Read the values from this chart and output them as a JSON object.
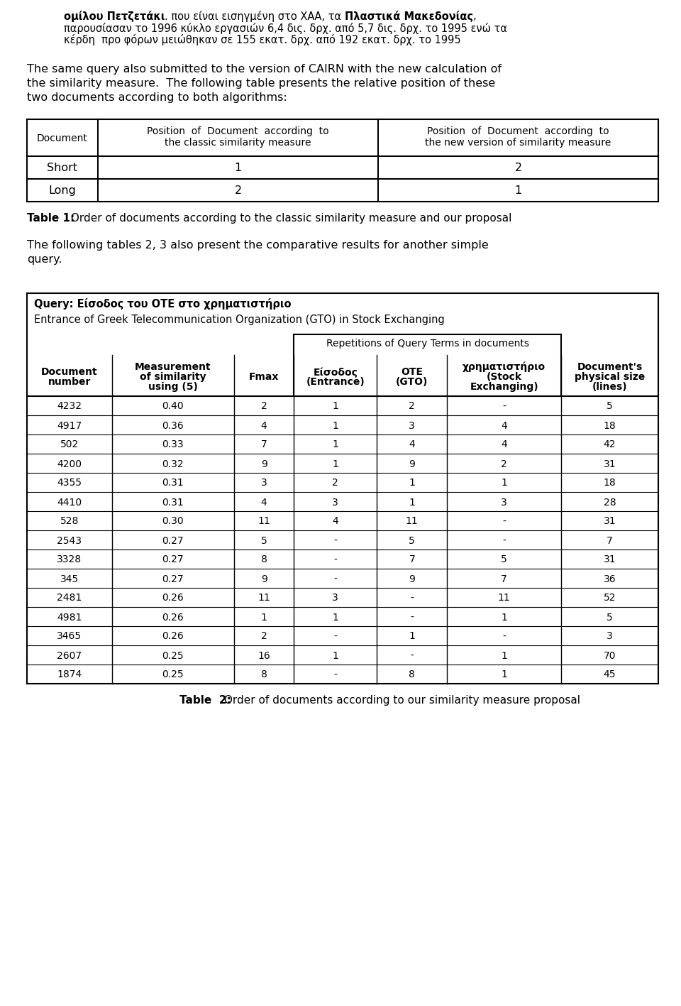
{
  "line1_bold1": "ομίλου Πετζετάκι",
  "line1_mid": ". που είναι εισηγμένη στο ΧΑΑ, τα ",
  "line1_bold2": "Πλαστικά Μακεδονίας",
  "line1_end": ",",
  "line2": "παρουσίασαν το 1996 κύκλο εργασιών 6,4 δις. δρχ. από 5,7 δις. δρχ. το 1995 ενώ τα",
  "line3": "κέρδη  προ φόρων μειώθηκαν σε 155 εκατ. δρχ. από 192 εκατ. δρχ. το 1995",
  "para1_lines": [
    "The same query also submitted to the version of CAIRN with the new calculation of",
    "the similarity measure.  The following table presents the relative position of these",
    "two documents according to both algorithms:"
  ],
  "t1_hdr0": "Document",
  "t1_hdr1a": "Position  of  Document  according  to",
  "t1_hdr1b": "the classic similarity measure",
  "t1_hdr2a": "Position  of  Document  according  to",
  "t1_hdr2b": "the new version of similarity measure",
  "t1_rows": [
    [
      "Short",
      "1",
      "2"
    ],
    [
      "Long",
      "2",
      "1"
    ]
  ],
  "t1_cap_bold": "Table 1:",
  "t1_cap_rest": " Order of documents according to the classic similarity measure and our proposal",
  "para2_lines": [
    "The following tables 2, 3 also present the comparative results for another simple",
    "query."
  ],
  "t2_query_bold": "Query: Είσοδος του ΟΤΕ στο χρηματιστήριο",
  "t2_query_normal": "Entrance of Greek Telecommunication Organization (GTO) in Stock Exchanging",
  "t2_subhdr": "Repetitions of Query Terms in documents",
  "t2_col_hdrs": [
    [
      "Document",
      "number"
    ],
    [
      "Measurement",
      "of similarity",
      "using (5)"
    ],
    [
      "Fmax"
    ],
    [
      "Είσοδος",
      "(Entrance)"
    ],
    [
      "OTE",
      "(GTO)"
    ],
    [
      "χρηματιστήριο",
      "(Stock",
      "Exchanging)"
    ],
    [
      "Document's",
      "physical size",
      "(lines)"
    ]
  ],
  "t2_rows": [
    [
      "4232",
      "0.40",
      "2",
      "1",
      "2",
      "-",
      "5"
    ],
    [
      "4917",
      "0.36",
      "4",
      "1",
      "3",
      "4",
      "18"
    ],
    [
      "502",
      "0.33",
      "7",
      "1",
      "4",
      "4",
      "42"
    ],
    [
      "4200",
      "0.32",
      "9",
      "1",
      "9",
      "2",
      "31"
    ],
    [
      "4355",
      "0.31",
      "3",
      "2",
      "1",
      "1",
      "18"
    ],
    [
      "4410",
      "0.31",
      "4",
      "3",
      "1",
      "3",
      "28"
    ],
    [
      "528",
      "0.30",
      "11",
      "4",
      "11",
      "-",
      "31"
    ],
    [
      "2543",
      "0.27",
      "5",
      "-",
      "5",
      "-",
      "7"
    ],
    [
      "3328",
      "0.27",
      "8",
      "-",
      "7",
      "5",
      "31"
    ],
    [
      "345",
      "0.27",
      "9",
      "-",
      "9",
      "7",
      "36"
    ],
    [
      "2481",
      "0.26",
      "11",
      "3",
      "-",
      "11",
      "52"
    ],
    [
      "4981",
      "0.26",
      "1",
      "1",
      "-",
      "1",
      "5"
    ],
    [
      "3465",
      "0.26",
      "2",
      "-",
      "1",
      "-",
      "3"
    ],
    [
      "2607",
      "0.25",
      "16",
      "1",
      "-",
      "1",
      "70"
    ],
    [
      "1874",
      "0.25",
      "8",
      "-",
      "8",
      "1",
      "45"
    ]
  ],
  "t2_cap_bold": "Table  2:",
  "t2_cap_rest": " Order of documents according to our similarity measure proposal"
}
